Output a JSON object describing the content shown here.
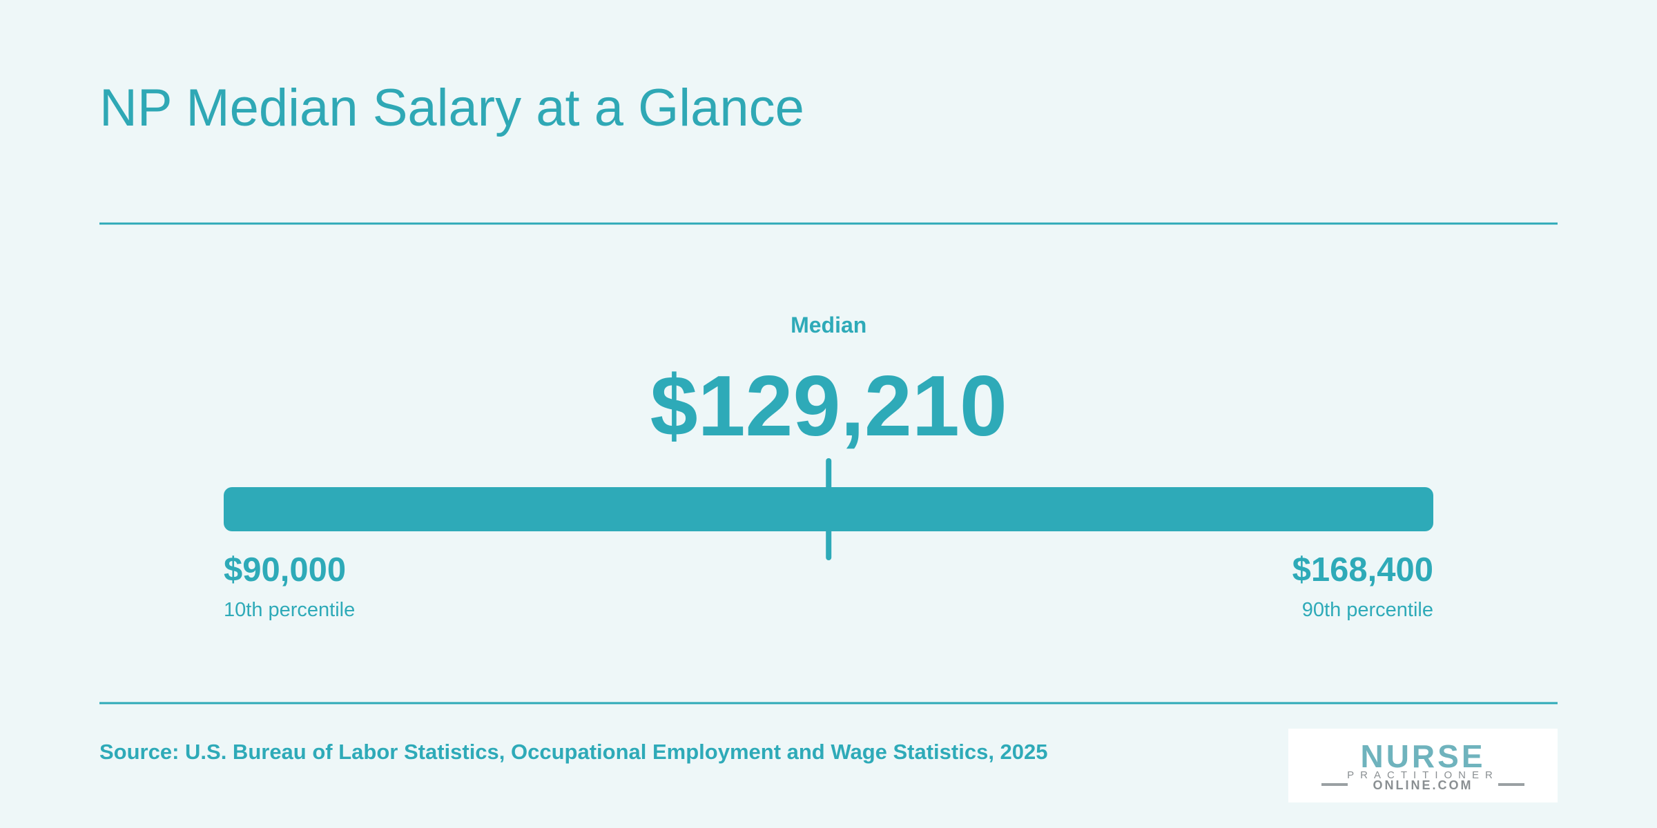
{
  "chart_data": {
    "type": "range",
    "title": "NP Median Salary at a Glance",
    "color": "#2eaab8",
    "median": {
      "label": "Median",
      "value": 129210,
      "value_label": "$129,210"
    },
    "low": {
      "label": "10th percentile",
      "value": 90000,
      "value_label": "$90,000"
    },
    "high": {
      "label": "90th percentile",
      "value": 168400,
      "value_label": "$168,400"
    },
    "source": "Source: U.S. Bureau of Labor Statistics, Occupational Employment and Wage Statistics, 2025",
    "logo": {
      "line1": "NURSE",
      "line2": "PRACTITIONER",
      "line3": "ONLINE.COM"
    }
  }
}
